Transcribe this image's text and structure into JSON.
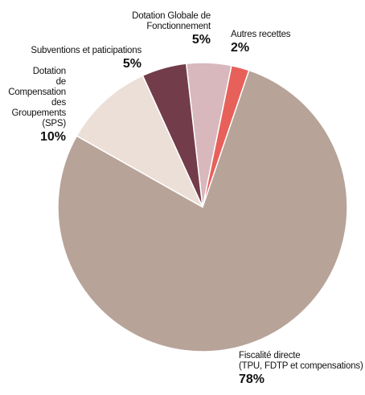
{
  "chart_data": {
    "type": "pie",
    "slices": [
      {
        "label": "Fiscalité directe\n(TPU, FDTP et compensations)",
        "value": 78,
        "value_label": "78%",
        "color": "#b7a398"
      },
      {
        "label": "Dotation\nde Compensation\ndes Groupements\n(SPS)",
        "value": 10,
        "value_label": "10%",
        "color": "#ebdfd7"
      },
      {
        "label": "Subventions et paticipations",
        "value": 5,
        "value_label": "5%",
        "color": "#733c4a"
      },
      {
        "label": "Dotation Globale de\nFonctionnement",
        "value": 5,
        "value_label": "5%",
        "color": "#d8b8bd"
      },
      {
        "label": "Autres recettes",
        "value": 2,
        "value_label": "2%",
        "color": "#e8605a"
      }
    ],
    "start": "12 o'clock",
    "direction": "counter-clockwise-from-right-side"
  }
}
